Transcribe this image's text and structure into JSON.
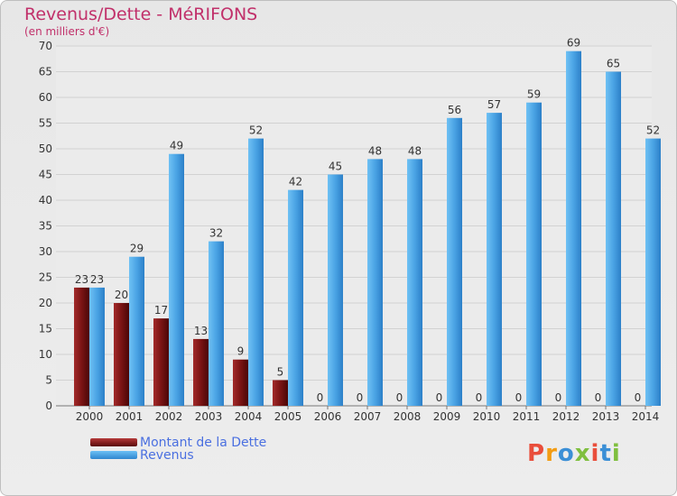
{
  "title": "Revenus/Dette - MéRIFONS",
  "subtitle": "(en milliers d'€)",
  "legend": [
    {
      "label": "Montant de la Dette",
      "color": "#7a1414"
    },
    {
      "label": "Revenus",
      "color": "#4aa3e4"
    }
  ],
  "logo": {
    "text": "Proxiti",
    "colors": [
      "#e94e3b",
      "#f39c12",
      "#3b8fd6",
      "#7fbf3f",
      "#e94e3b",
      "#3b8fd6",
      "#7fbf3f"
    ]
  },
  "chart_data": {
    "type": "bar",
    "categories": [
      "2000",
      "2001",
      "2002",
      "2003",
      "2004",
      "2005",
      "2006",
      "2007",
      "2008",
      "2009",
      "2010",
      "2011",
      "2012",
      "2013",
      "2014"
    ],
    "series": [
      {
        "name": "Montant de la Dette",
        "values": [
          23,
          20,
          17,
          13,
          9,
          5,
          0,
          0,
          0,
          0,
          0,
          0,
          0,
          0,
          0
        ]
      },
      {
        "name": "Revenus",
        "values": [
          23,
          29,
          49,
          32,
          52,
          42,
          45,
          48,
          48,
          56,
          57,
          59,
          69,
          65,
          52
        ]
      }
    ],
    "yticks": [
      0,
      5,
      10,
      15,
      20,
      25,
      30,
      35,
      40,
      45,
      50,
      55,
      60,
      65,
      70
    ],
    "ylim": [
      0,
      70
    ],
    "grid": true,
    "legend_position": "bottom-left"
  }
}
